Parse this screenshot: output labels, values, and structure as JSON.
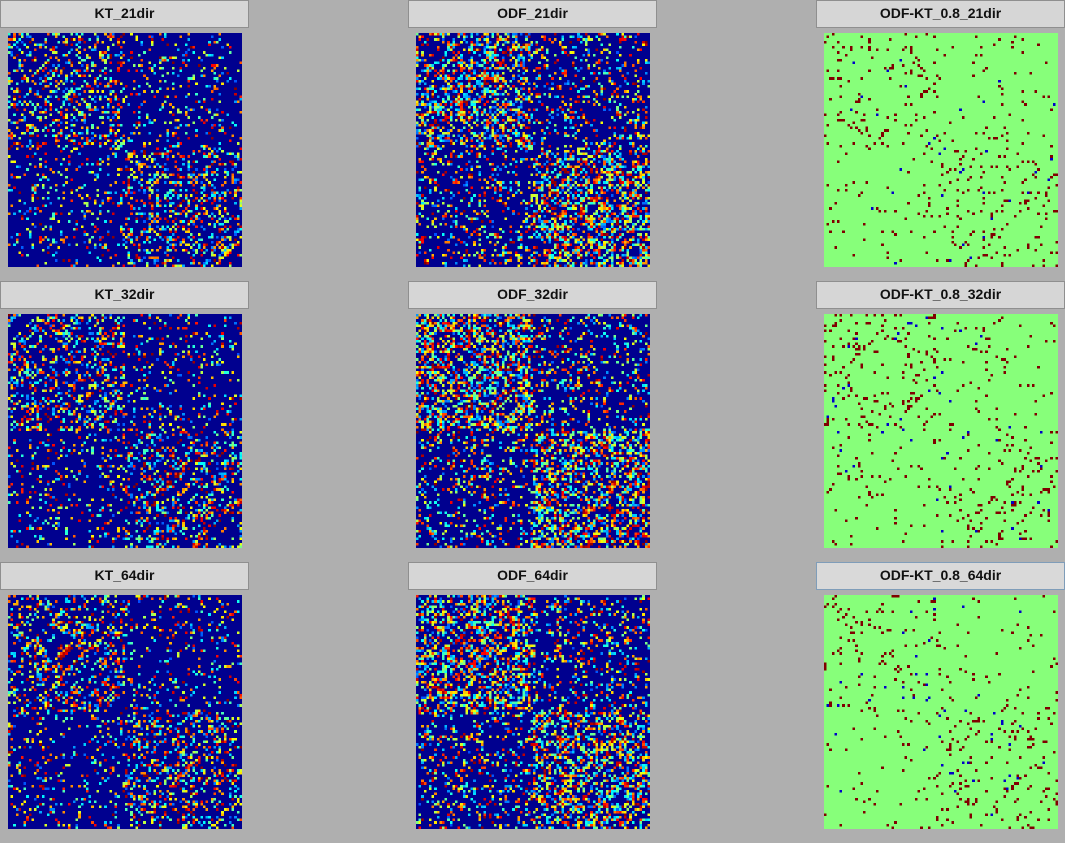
{
  "panels": [
    {
      "id": "kt-21",
      "title": "KT_21dir",
      "kind": "jet",
      "seed": 11,
      "selected": false
    },
    {
      "id": "odf-21",
      "title": "ODF_21dir",
      "kind": "jet-dense",
      "seed": 23,
      "selected": false
    },
    {
      "id": "diff-21",
      "title": "ODF-KT_0.8_21dir",
      "kind": "diff",
      "seed": 37,
      "selected": false
    },
    {
      "id": "kt-32",
      "title": "KT_32dir",
      "kind": "jet",
      "seed": 41,
      "selected": false
    },
    {
      "id": "odf-32",
      "title": "ODF_32dir",
      "kind": "jet-dense",
      "seed": 53,
      "selected": false
    },
    {
      "id": "diff-32",
      "title": "ODF-KT_0.8_32dir",
      "kind": "diff",
      "seed": 67,
      "selected": false
    },
    {
      "id": "kt-64",
      "title": "KT_64dir",
      "kind": "jet",
      "seed": 71,
      "selected": false
    },
    {
      "id": "odf-64",
      "title": "ODF_64dir",
      "kind": "jet-dense",
      "seed": 83,
      "selected": false
    },
    {
      "id": "diff-64",
      "title": "ODF-KT_0.8_64dir",
      "kind": "diff",
      "seed": 97,
      "selected": true
    }
  ],
  "matrix_size": 90,
  "colors": {
    "background": "#afafaf",
    "jet_low": "#00008f",
    "diff_background": "#87ff7a",
    "diff_positive": "#800000",
    "diff_negative": "#0000c8"
  }
}
